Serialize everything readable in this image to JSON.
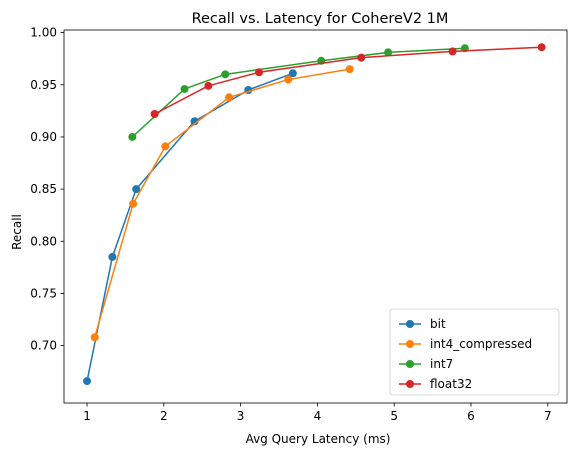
{
  "chart_data": {
    "type": "line",
    "title": "Recall vs. Latency for CohereV2 1M",
    "xlabel": "Avg Query Latency (ms)",
    "ylabel": "Recall",
    "xlim": [
      0.7,
      7.25
    ],
    "ylim": [
      0.645,
      1.0025
    ],
    "xticks": [
      1,
      2,
      3,
      4,
      5,
      6,
      7
    ],
    "yticks": [
      0.7,
      0.75,
      0.8,
      0.85,
      0.9,
      0.95,
      1.0
    ],
    "xtick_labels": [
      "1",
      "2",
      "3",
      "4",
      "5",
      "6",
      "7"
    ],
    "ytick_labels": [
      "0.70",
      "0.75",
      "0.80",
      "0.85",
      "0.90",
      "0.95",
      "1.00"
    ],
    "grid": false,
    "legend_position": "lower right",
    "series": [
      {
        "name": "bit",
        "color": "#1f77b4",
        "x": [
          1.0,
          1.33,
          1.64,
          2.4,
          3.1,
          3.68
        ],
        "y": [
          0.666,
          0.785,
          0.85,
          0.915,
          0.945,
          0.961
        ]
      },
      {
        "name": "int4_compressed",
        "color": "#ff7f0e",
        "x": [
          1.1,
          1.6,
          2.02,
          2.85,
          3.62,
          4.42
        ],
        "y": [
          0.708,
          0.836,
          0.891,
          0.938,
          0.955,
          0.965
        ]
      },
      {
        "name": "int7",
        "color": "#2ca02c",
        "x": [
          1.59,
          2.27,
          2.8,
          4.05,
          4.92,
          5.92
        ],
        "y": [
          0.9,
          0.946,
          0.96,
          0.973,
          0.981,
          0.985
        ]
      },
      {
        "name": "float32",
        "color": "#d62728",
        "x": [
          1.88,
          2.58,
          3.24,
          4.57,
          5.76,
          6.92
        ],
        "y": [
          0.922,
          0.949,
          0.962,
          0.976,
          0.982,
          0.986
        ]
      }
    ]
  }
}
